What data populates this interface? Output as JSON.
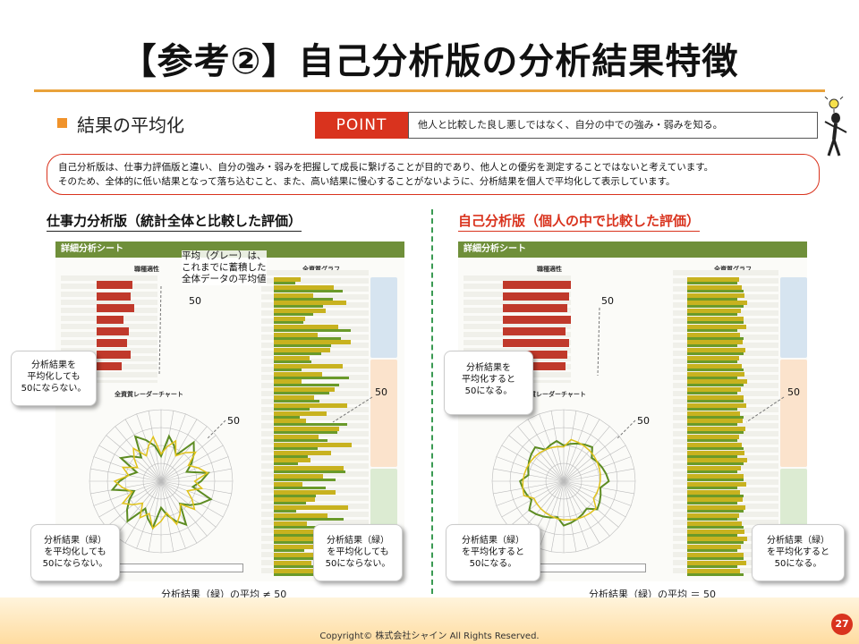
{
  "title": "【参考②】自己分析版の分析結果特徴",
  "subheading": "結果の平均化",
  "point": {
    "label": "POINT",
    "text": "他人と比較した良し悪しではなく、自分の中での強み・弱みを知る。"
  },
  "intro": {
    "line1": "自己分析版は、仕事力評価版と違い、自分の強み・弱みを把握して成長に繋げることが目的であり、他人との優劣を測定することではないと考えています。",
    "line2": "そのため、全体的に低い結果となって落ち込むこと、また、高い結果に慢心することがないように、分析結果を個人で平均化して表示しています。"
  },
  "left": {
    "heading": "仕事力分析版（統計全体と比較した評価）",
    "sheet_title": "詳細分析シート",
    "panel_label_job": "職種適性",
    "panel_label_all": "全資質グラフ",
    "panel_label_radar": "全資質レーダーチャート",
    "avg_note_1": "平均（グレー）は、",
    "avg_note_2": "これまでに蓄積した",
    "avg_note_3": "全体データの平均値",
    "fifty_top": "50",
    "fifty_mid": "50",
    "fifty_right": "50",
    "callout_top": [
      "分析結果を",
      "平均化しても",
      "50にならない。"
    ],
    "callout_bottom_left": [
      "分析結果（緑）",
      "を平均化しても",
      "50にならない。"
    ],
    "callout_bottom_right": [
      "分析結果（緑）",
      "を平均化しても",
      "50にならない。"
    ],
    "caption": "分析結果（緑）の平均 ≠ 50"
  },
  "right": {
    "heading": "自己分析版（個人の中で比較した評価）",
    "sheet_title": "詳細分析シート",
    "panel_label_job": "職種適性",
    "panel_label_all": "全資質グラフ",
    "panel_label_radar": "全資質レーダーチャート",
    "fifty_top": "50",
    "fifty_mid": "50",
    "fifty_right": "50",
    "callout_top": [
      "分析結果を",
      "平均化すると",
      "50になる。"
    ],
    "callout_bottom_left": [
      "分析結果（緑）",
      "を平均化すると",
      "50になる。"
    ],
    "callout_bottom_right": [
      "分析結果（緑）",
      "を平均化すると",
      "50になる。"
    ],
    "caption": "分析結果（緑）の平均 ＝ 50"
  },
  "footer": {
    "copyright": "Copyright© 株式会社シャイン All Rights Reserved.",
    "page": "27"
  },
  "colors": {
    "accent": "#d9331e",
    "rule": "#e9a23b",
    "divider": "#3a9a52",
    "sheet_bar": "#6f8f3a"
  }
}
